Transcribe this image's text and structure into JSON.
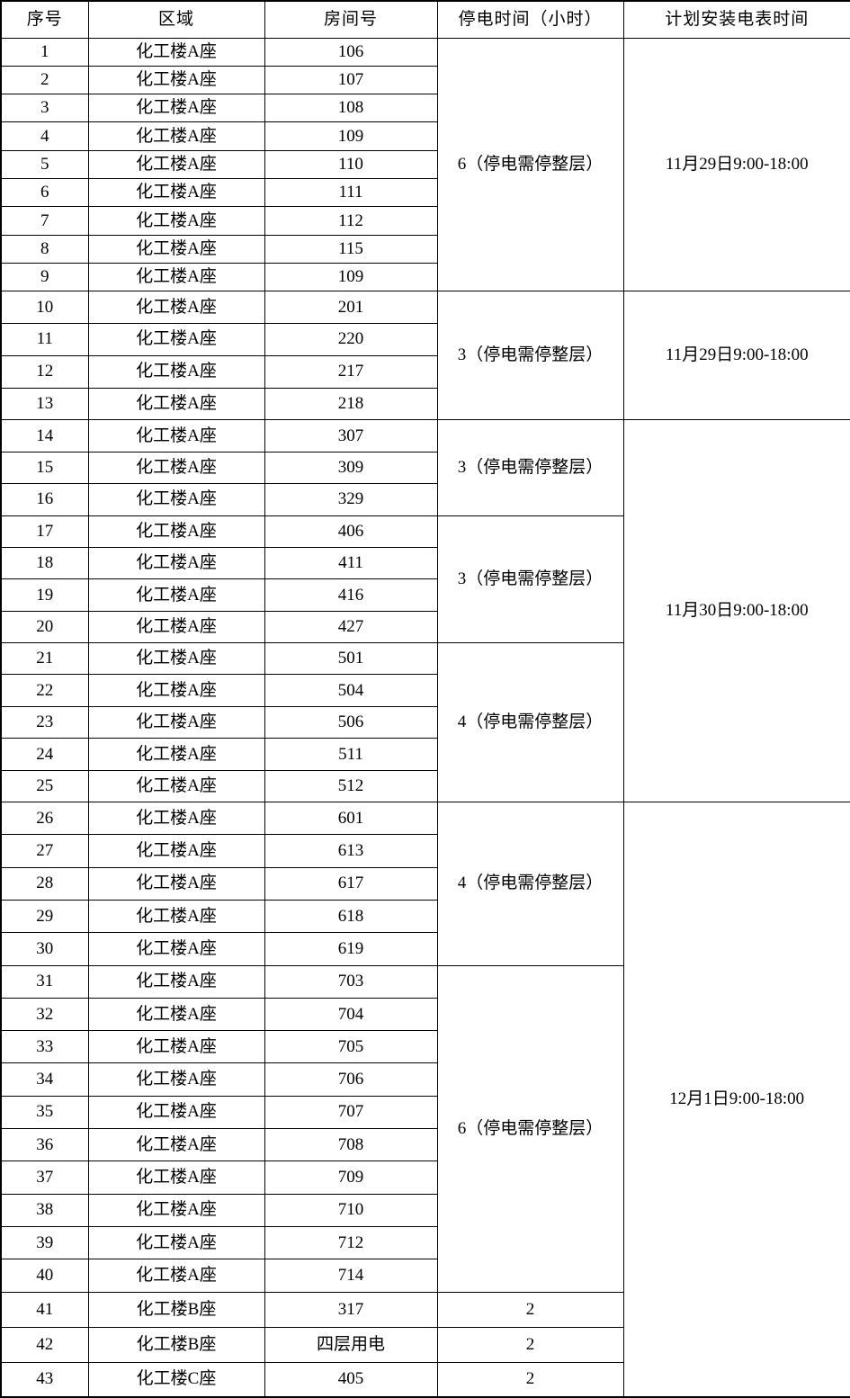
{
  "table": {
    "headers": [
      "序号",
      "区域",
      "房间号",
      "停电时间（小时）",
      "计划安装电表时间"
    ],
    "rows": [
      {
        "seq": "1",
        "area": "化工楼A座",
        "room": "106"
      },
      {
        "seq": "2",
        "area": "化工楼A座",
        "room": "107"
      },
      {
        "seq": "3",
        "area": "化工楼A座",
        "room": "108"
      },
      {
        "seq": "4",
        "area": "化工楼A座",
        "room": "109"
      },
      {
        "seq": "5",
        "area": "化工楼A座",
        "room": "110"
      },
      {
        "seq": "6",
        "area": "化工楼A座",
        "room": "111"
      },
      {
        "seq": "7",
        "area": "化工楼A座",
        "room": "112"
      },
      {
        "seq": "8",
        "area": "化工楼A座",
        "room": "115"
      },
      {
        "seq": "9",
        "area": "化工楼A座",
        "room": "109"
      },
      {
        "seq": "10",
        "area": "化工楼A座",
        "room": "201"
      },
      {
        "seq": "11",
        "area": "化工楼A座",
        "room": "220"
      },
      {
        "seq": "12",
        "area": "化工楼A座",
        "room": "217"
      },
      {
        "seq": "13",
        "area": "化工楼A座",
        "room": "218"
      },
      {
        "seq": "14",
        "area": "化工楼A座",
        "room": "307"
      },
      {
        "seq": "15",
        "area": "化工楼A座",
        "room": "309"
      },
      {
        "seq": "16",
        "area": "化工楼A座",
        "room": "329"
      },
      {
        "seq": "17",
        "area": "化工楼A座",
        "room": "406"
      },
      {
        "seq": "18",
        "area": "化工楼A座",
        "room": "411"
      },
      {
        "seq": "19",
        "area": "化工楼A座",
        "room": "416"
      },
      {
        "seq": "20",
        "area": "化工楼A座",
        "room": "427"
      },
      {
        "seq": "21",
        "area": "化工楼A座",
        "room": "501"
      },
      {
        "seq": "22",
        "area": "化工楼A座",
        "room": "504"
      },
      {
        "seq": "23",
        "area": "化工楼A座",
        "room": "506"
      },
      {
        "seq": "24",
        "area": "化工楼A座",
        "room": "511"
      },
      {
        "seq": "25",
        "area": "化工楼A座",
        "room": "512"
      },
      {
        "seq": "26",
        "area": "化工楼A座",
        "room": "601"
      },
      {
        "seq": "27",
        "area": "化工楼A座",
        "room": "613"
      },
      {
        "seq": "28",
        "area": "化工楼A座",
        "room": "617"
      },
      {
        "seq": "29",
        "area": "化工楼A座",
        "room": "618"
      },
      {
        "seq": "30",
        "area": "化工楼A座",
        "room": "619"
      },
      {
        "seq": "31",
        "area": "化工楼A座",
        "room": "703"
      },
      {
        "seq": "32",
        "area": "化工楼A座",
        "room": "704"
      },
      {
        "seq": "33",
        "area": "化工楼A座",
        "room": "705"
      },
      {
        "seq": "34",
        "area": "化工楼A座",
        "room": "706"
      },
      {
        "seq": "35",
        "area": "化工楼A座",
        "room": "707"
      },
      {
        "seq": "36",
        "area": "化工楼A座",
        "room": "708"
      },
      {
        "seq": "37",
        "area": "化工楼A座",
        "room": "709"
      },
      {
        "seq": "38",
        "area": "化工楼A座",
        "room": "710"
      },
      {
        "seq": "39",
        "area": "化工楼A座",
        "room": "712"
      },
      {
        "seq": "40",
        "area": "化工楼A座",
        "room": "714"
      },
      {
        "seq": "41",
        "area": "化工楼B座",
        "room": "317"
      },
      {
        "seq": "42",
        "area": "化工楼B座",
        "room": "四层用电"
      },
      {
        "seq": "43",
        "area": "化工楼C座",
        "room": "405"
      }
    ],
    "hour_groups": [
      {
        "start": 1,
        "span": 9,
        "label": "6（停电需停整层）"
      },
      {
        "start": 10,
        "span": 4,
        "label": "3（停电需停整层）"
      },
      {
        "start": 14,
        "span": 3,
        "label": "3（停电需停整层）"
      },
      {
        "start": 17,
        "span": 4,
        "label": "3（停电需停整层）"
      },
      {
        "start": 21,
        "span": 5,
        "label": "4（停电需停整层）"
      },
      {
        "start": 26,
        "span": 5,
        "label": "4（停电需停整层）"
      },
      {
        "start": 31,
        "span": 10,
        "label": "6（停电需停整层）"
      },
      {
        "start": 41,
        "span": 1,
        "label": "2"
      },
      {
        "start": 42,
        "span": 1,
        "label": "2"
      },
      {
        "start": 43,
        "span": 1,
        "label": "2"
      }
    ],
    "date_groups": [
      {
        "start": 1,
        "span": 9,
        "label": "11月29日9:00-18:00"
      },
      {
        "start": 10,
        "span": 4,
        "label": "11月29日9:00-18:00"
      },
      {
        "start": 14,
        "span": 12,
        "label": "11月30日9:00-18:00"
      },
      {
        "start": 26,
        "span": 18,
        "label": "12月1日9:00-18:00"
      }
    ],
    "colors": {
      "border": "#000000",
      "background": "#ffffff",
      "text": "#000000"
    }
  }
}
